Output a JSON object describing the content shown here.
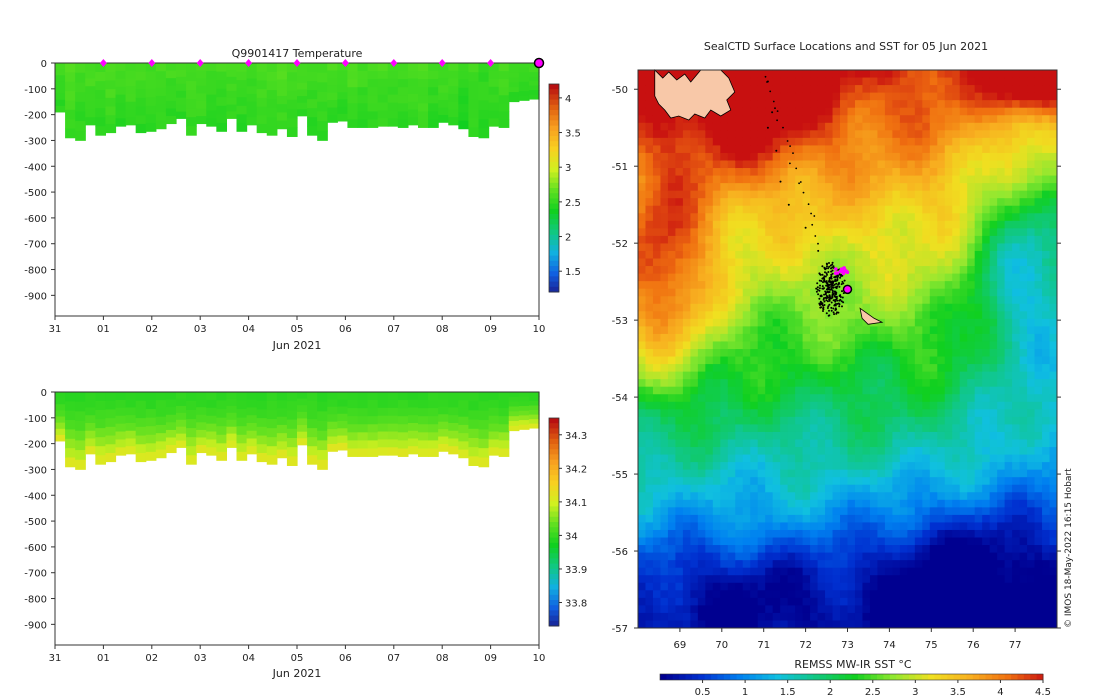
{
  "colors": {
    "temp_stops": [
      "#1a1a8c",
      "#1060e0",
      "#10b0e0",
      "#10c880",
      "#10d020",
      "#60e020",
      "#d0f020",
      "#f8d020",
      "#f8a020",
      "#e06010",
      "#b81010"
    ],
    "sst_stops": [
      "#000090",
      "#0030d0",
      "#0080f0",
      "#10c0e0",
      "#10c880",
      "#10d020",
      "#90e830",
      "#f0e020",
      "#f8b020",
      "#f07010",
      "#c81010"
    ],
    "land": "#f8c8a8",
    "marker": "#ff00ff"
  },
  "chart_data": [
    {
      "type": "heatmap",
      "title": "Q9901417  Temperature",
      "xlabel": "Jun 2021",
      "ylabel": "",
      "x_ticks": [
        "31",
        "01",
        "02",
        "03",
        "04",
        "05",
        "06",
        "07",
        "08",
        "09",
        "10"
      ],
      "y_ticks": [
        "0",
        "-100",
        "-200",
        "-300",
        "-400",
        "-500",
        "-600",
        "-700",
        "-800",
        "-900"
      ],
      "ylim": [
        -980,
        0
      ],
      "xlim": [
        0,
        10
      ],
      "colorbar_ticks": [
        "1.5",
        "2",
        "2.5",
        "3",
        "3.5",
        "4"
      ],
      "colorbar_range": [
        1.2,
        4.2
      ],
      "profile_depths": [
        190,
        290,
        300,
        240,
        280,
        270,
        245,
        240,
        270,
        265,
        255,
        235,
        215,
        280,
        235,
        245,
        265,
        215,
        265,
        240,
        270,
        280,
        255,
        285,
        205,
        280,
        300,
        230,
        225,
        250,
        250,
        250,
        245,
        245,
        250,
        240,
        250,
        250,
        230,
        240,
        255,
        285,
        290,
        245,
        250,
        150,
        145,
        140
      ],
      "profile_means": [
        2.6,
        2.65,
        2.6,
        2.62,
        2.6,
        2.64,
        2.6,
        2.62,
        2.6,
        2.58,
        2.62,
        2.6,
        2.6,
        2.62,
        2.64,
        2.6,
        2.6,
        2.62,
        2.6,
        2.6,
        2.62,
        2.6,
        2.64,
        2.6,
        2.62,
        2.6,
        2.6,
        2.62,
        2.6,
        2.64,
        2.6,
        2.6,
        2.62,
        2.6,
        2.6,
        2.62,
        2.64,
        2.58,
        2.6,
        2.62,
        2.55,
        2.6,
        2.55,
        2.6,
        2.62,
        2.6,
        2.6,
        2.58
      ],
      "markers_x": [
        1,
        2,
        3,
        4,
        5,
        6,
        7,
        8,
        9
      ],
      "end_marker_x": 10
    },
    {
      "type": "heatmap",
      "title": "",
      "xlabel": "Jun 2021",
      "ylabel": "",
      "x_ticks": [
        "31",
        "01",
        "02",
        "03",
        "04",
        "05",
        "06",
        "07",
        "08",
        "09",
        "10"
      ],
      "y_ticks": [
        "0",
        "-100",
        "-200",
        "-300",
        "-400",
        "-500",
        "-600",
        "-700",
        "-800",
        "-900"
      ],
      "ylim": [
        -980,
        0
      ],
      "xlim": [
        0,
        10
      ],
      "colorbar_ticks": [
        "33.8",
        "33.9",
        "34",
        "34.1",
        "34.2",
        "34.3"
      ],
      "colorbar_range": [
        33.73,
        34.35
      ],
      "salinity_surface": 34.0,
      "salinity_deep": 34.12
    },
    {
      "type": "heatmap",
      "title": "SealCTD Surface Locations and SST for 05 Jun 2021",
      "xlabel": "REMSS MW-IR SST °C",
      "x_ticks": [
        "69",
        "70",
        "71",
        "72",
        "73",
        "74",
        "75",
        "76",
        "77"
      ],
      "y_ticks": [
        "-50",
        "-51",
        "-52",
        "-53",
        "-54",
        "-55",
        "-56",
        "-57"
      ],
      "xlim": [
        68,
        78
      ],
      "ylim": [
        -57,
        -49.75
      ],
      "colorbar_ticks": [
        "0.5",
        "1",
        "1.5",
        "2",
        "2.5",
        "3",
        "3.5",
        "4",
        "4.5"
      ],
      "colorbar_range": [
        0,
        4.5
      ],
      "cluster_center": [
        72.6,
        -52.6
      ],
      "current_position": [
        73.0,
        -52.6
      ],
      "track": [
        [
          71.1,
          -49.9
        ],
        [
          71.2,
          -50.3
        ],
        [
          71.1,
          -50.5
        ],
        [
          71.3,
          -50.8
        ],
        [
          71.4,
          -51.2
        ],
        [
          71.6,
          -51.5
        ],
        [
          72.0,
          -51.8
        ],
        [
          72.3,
          -52.1
        ],
        [
          72.4,
          -52.3
        ]
      ]
    }
  ],
  "watermark": "©  IMOS 18-May-2022 16:15 Hobart"
}
